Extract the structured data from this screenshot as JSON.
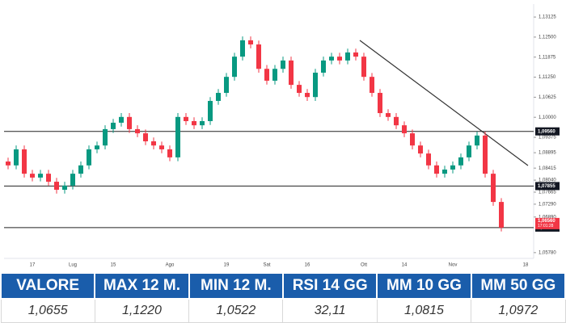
{
  "chart_data": {
    "type": "candlestick",
    "categories": [
      null,
      null,
      null,
      "17",
      null,
      null,
      null,
      null,
      "Lug",
      null,
      null,
      null,
      null,
      "15",
      null,
      null,
      null,
      null,
      null,
      null,
      "Ago",
      null,
      null,
      null,
      null,
      null,
      null,
      "19",
      null,
      null,
      null,
      null,
      "Sat",
      null,
      null,
      null,
      null,
      "16",
      null,
      null,
      null,
      null,
      null,
      null,
      "Ott",
      null,
      null,
      null,
      null,
      "14",
      null,
      null,
      null,
      null,
      null,
      "Nov",
      null,
      null,
      null,
      null,
      null,
      null,
      null,
      null,
      "18"
    ],
    "open": [
      1.0862,
      1.085,
      1.09,
      1.0824,
      1.0812,
      1.0824,
      1.0799,
      1.0774,
      1.0787,
      1.0824,
      1.085,
      1.09,
      1.0912,
      1.0963,
      1.0983,
      1.1001,
      1.0963,
      1.095,
      1.0925,
      1.0912,
      1.09,
      1.0875,
      1.1001,
      1.0988,
      1.0975,
      1.0988,
      1.1051,
      1.1076,
      1.1126,
      1.1189,
      1.124,
      1.1227,
      1.1151,
      1.1114,
      1.1151,
      1.1177,
      1.1101,
      1.1076,
      1.1063,
      1.1139,
      1.1177,
      1.1189,
      1.1177,
      1.1202,
      1.1189,
      1.1126,
      1.1076,
      1.1013,
      1.1001,
      1.0975,
      1.095,
      1.0912,
      1.0887,
      1.085,
      1.0824,
      1.0837,
      1.085,
      1.0875,
      1.0912,
      1.0943,
      1.0824,
      1.0736,
      null,
      null,
      null
    ],
    "high": [
      1.0874,
      1.0912,
      1.0912,
      1.0836,
      1.0836,
      1.0836,
      1.0811,
      1.0799,
      1.0836,
      1.0862,
      1.0912,
      1.0924,
      1.0975,
      1.0995,
      1.1013,
      1.1013,
      1.0975,
      1.0962,
      1.0937,
      1.0924,
      1.0912,
      1.1013,
      1.1013,
      1.1,
      1.1,
      1.1063,
      1.1088,
      1.1138,
      1.1201,
      1.1252,
      1.1252,
      1.1239,
      1.1163,
      1.1163,
      1.1189,
      1.1189,
      1.1113,
      1.1088,
      1.1151,
      1.1189,
      1.1201,
      1.1201,
      1.1214,
      1.1214,
      1.1201,
      1.1138,
      1.1088,
      1.1025,
      1.1013,
      1.0987,
      1.0962,
      1.0924,
      1.0899,
      1.0862,
      1.0849,
      1.0862,
      1.0887,
      1.0924,
      1.0955,
      1.0955,
      1.0836,
      1.0748,
      null,
      null,
      null
    ],
    "low": [
      1.0838,
      1.0838,
      1.0812,
      1.08,
      1.08,
      1.0787,
      1.0762,
      1.0762,
      1.0775,
      1.0812,
      1.0838,
      1.0888,
      1.09,
      1.0951,
      1.0971,
      1.0951,
      1.0938,
      1.0913,
      1.09,
      1.0888,
      1.0863,
      1.0863,
      1.0976,
      1.0963,
      1.0963,
      1.0976,
      1.1039,
      1.1064,
      1.1114,
      1.1177,
      1.1215,
      1.1139,
      1.1102,
      1.1102,
      1.1139,
      1.1089,
      1.1064,
      1.1051,
      1.1051,
      1.1127,
      1.1165,
      1.1165,
      1.1165,
      1.1177,
      1.1114,
      1.1064,
      1.1001,
      1.0989,
      1.0963,
      1.0938,
      1.09,
      1.0875,
      1.0838,
      1.0812,
      1.0812,
      1.0825,
      1.0838,
      1.0863,
      1.09,
      1.0812,
      1.0724,
      1.0644,
      null,
      null,
      null
    ],
    "close": [
      1.085,
      1.09,
      1.0824,
      1.0812,
      1.0824,
      1.0799,
      1.0774,
      1.0787,
      1.0824,
      1.085,
      1.09,
      1.0912,
      1.0963,
      1.0983,
      1.1001,
      1.0963,
      1.095,
      1.0925,
      1.0912,
      1.09,
      1.0875,
      1.1001,
      1.0988,
      1.0975,
      1.0988,
      1.1051,
      1.1076,
      1.1126,
      1.1189,
      1.124,
      1.1227,
      1.1151,
      1.1114,
      1.1151,
      1.1177,
      1.1101,
      1.1076,
      1.1063,
      1.1139,
      1.1177,
      1.1189,
      1.1177,
      1.1202,
      1.1189,
      1.1126,
      1.1076,
      1.1013,
      1.1001,
      1.0975,
      1.095,
      1.0912,
      1.0887,
      1.085,
      1.0824,
      1.0837,
      1.085,
      1.0875,
      1.0912,
      1.0943,
      1.0824,
      1.0736,
      1.0656,
      null,
      null,
      null
    ],
    "up_color": "#089981",
    "down_color": "#f23645",
    "ylim": [
      1.056,
      1.1353
    ],
    "yticks": [
      {
        "value": 1.13125,
        "label": "1,13125"
      },
      {
        "value": 1.125,
        "label": "1,12500"
      },
      {
        "value": 1.11875,
        "label": "1,11875"
      },
      {
        "value": 1.1125,
        "label": "1,11250"
      },
      {
        "value": 1.10625,
        "label": "1,10625"
      },
      {
        "value": 1.1,
        "label": "1,10000"
      },
      {
        "value": 1.09375,
        "label": "1,09375"
      },
      {
        "value": 1.08895,
        "label": "1,08895"
      },
      {
        "value": 1.08415,
        "label": "1,08415"
      },
      {
        "value": 1.0804,
        "label": "1,08040"
      },
      {
        "value": 1.07665,
        "label": "1,07665"
      },
      {
        "value": 1.0729,
        "label": "1,07290"
      },
      {
        "value": 1.0689,
        "label": "1,06890"
      },
      {
        "value": 1.0578,
        "label": "1,05780"
      }
    ],
    "levels": [
      {
        "value": 1.0956,
        "label": "1,09560"
      },
      {
        "value": 1.07855,
        "label": "1,07855"
      },
      {
        "value": 1.0656,
        "label": "1,06560"
      }
    ],
    "last_price_label": "1,06560",
    "countdown": "17:01:28"
  },
  "table": {
    "header": [
      "VALORE",
      "MAX 12 M.",
      "MIN 12 M.",
      "RSI 14 GG",
      "MM 10 GG",
      "MM 50 GG"
    ],
    "row": [
      "1,0655",
      "1,1220",
      "1,0522",
      "32,11",
      "1,0815",
      "1,0972"
    ]
  }
}
